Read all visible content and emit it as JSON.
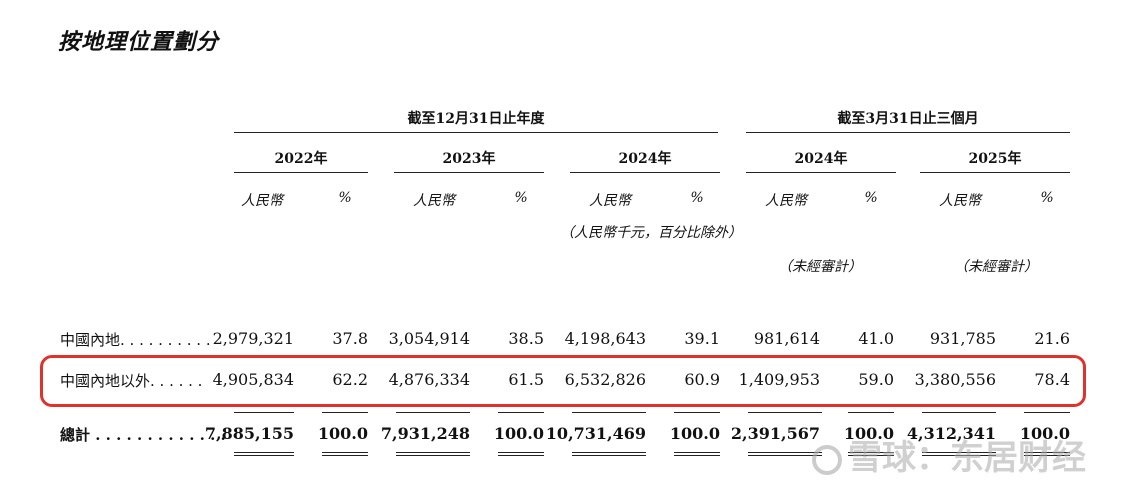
{
  "title": "按地理位置劃分",
  "header": {
    "group_year": "截至12月31日止年度",
    "group_quarter": "截至3月31日止三個月",
    "years": [
      "2022年",
      "2023年",
      "2024年",
      "2024年",
      "2025年"
    ],
    "col_rmb": "人民幣",
    "col_pct": "%",
    "unit_note": "（人民幣千元，百分比除外）",
    "unaudited": "（未經審計）"
  },
  "rows": [
    {
      "label": "中國內地. . . . . . . . . .",
      "values": [
        "2,979,321",
        "37.8",
        "3,054,914",
        "38.5",
        "4,198,643",
        "39.1",
        "981,614",
        "41.0",
        "931,785",
        "21.6"
      ]
    },
    {
      "label": "中國內地以外. . . . . .",
      "values": [
        "4,905,834",
        "62.2",
        "4,876,334",
        "61.5",
        "6,532,826",
        "60.9",
        "1,409,953",
        "59.0",
        "3,380,556",
        "78.4"
      ]
    },
    {
      "label": "總計 . . . . . . . . . . . . .",
      "values": [
        "7,885,155",
        "100.0",
        "7,931,248",
        "100.0",
        "10,731,469",
        "100.0",
        "2,391,567",
        "100.0",
        "4,312,341",
        "100.0"
      ]
    }
  ],
  "watermark": "雪球：东居财经",
  "colors": {
    "highlight": "#e0322c"
  }
}
